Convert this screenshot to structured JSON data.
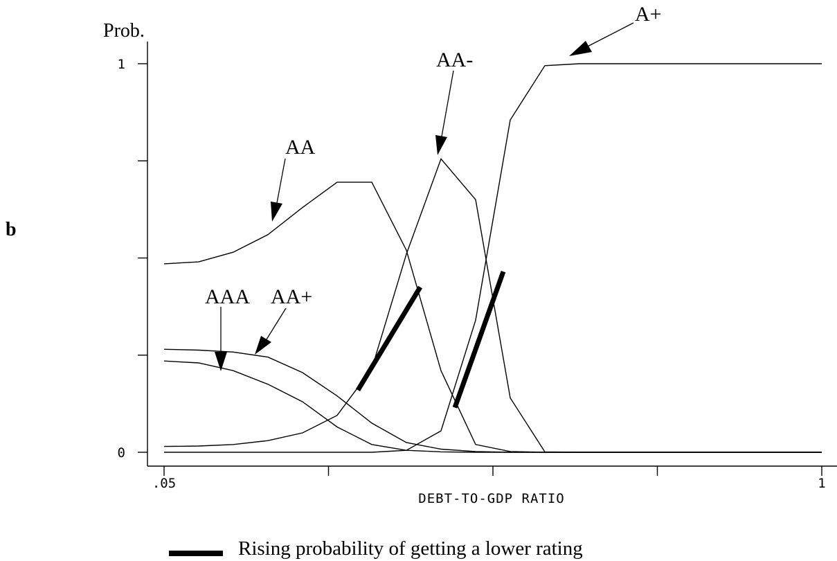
{
  "panel_label": "b",
  "chart_data": {
    "type": "line",
    "ylabel": "Prob.",
    "xlabel": "DEBT-TO-GDP RATIO",
    "xlim": [
      0.05,
      1
    ],
    "ylim": [
      0,
      1
    ],
    "x_tick_labels": [
      {
        "x": 0.05,
        "label": ".05"
      },
      {
        "x": 1,
        "label": "1"
      }
    ],
    "x_unlabeled_ticks": [
      0.05,
      0.2875,
      0.525,
      0.7625,
      1
    ],
    "y_tick_labels": [
      {
        "y": 0,
        "label": "0"
      },
      {
        "y": 1,
        "label": "1"
      }
    ],
    "y_unlabeled_ticks": [
      0,
      0.25,
      0.5,
      0.75,
      1
    ],
    "x": [
      0.05,
      0.1,
      0.15,
      0.2,
      0.25,
      0.3,
      0.35,
      0.4,
      0.45,
      0.5,
      0.55,
      0.6,
      0.65,
      0.7,
      0.75,
      0.8,
      0.85,
      0.9,
      0.95,
      1.0
    ],
    "series": [
      {
        "name": "AAA",
        "values": [
          0.235,
          0.23,
          0.21,
          0.175,
          0.13,
          0.065,
          0.02,
          0.005,
          0.001,
          0,
          0,
          0,
          0,
          0,
          0,
          0,
          0,
          0,
          0,
          0
        ]
      },
      {
        "name": "AA+",
        "values": [
          0.265,
          0.263,
          0.258,
          0.245,
          0.205,
          0.145,
          0.075,
          0.025,
          0.008,
          0.002,
          0,
          0,
          0,
          0,
          0,
          0,
          0,
          0,
          0,
          0
        ]
      },
      {
        "name": "AA",
        "values": [
          0.485,
          0.49,
          0.515,
          0.56,
          0.63,
          0.695,
          0.695,
          0.52,
          0.21,
          0.02,
          0.002,
          0,
          0,
          0,
          0,
          0,
          0,
          0,
          0,
          0
        ]
      },
      {
        "name": "AA-",
        "values": [
          0.015,
          0.016,
          0.02,
          0.03,
          0.05,
          0.095,
          0.215,
          0.51,
          0.755,
          0.65,
          0.14,
          0.001,
          0,
          0,
          0,
          0,
          0,
          0,
          0,
          0
        ]
      },
      {
        "name": "A+",
        "values": [
          0,
          0,
          0,
          0,
          0,
          0,
          0,
          0.005,
          0.055,
          0.34,
          0.855,
          0.995,
          1,
          1,
          1,
          1,
          1,
          1,
          1,
          1
        ]
      }
    ],
    "highlight_segments": [
      {
        "x": [
          0.33,
          0.42
        ],
        "y": [
          0.16,
          0.425
        ]
      },
      {
        "x": [
          0.47,
          0.54
        ],
        "y": [
          0.115,
          0.465
        ]
      }
    ],
    "legend": {
      "position": "bottom-center",
      "label": "Rising probability of getting a lower rating"
    }
  }
}
